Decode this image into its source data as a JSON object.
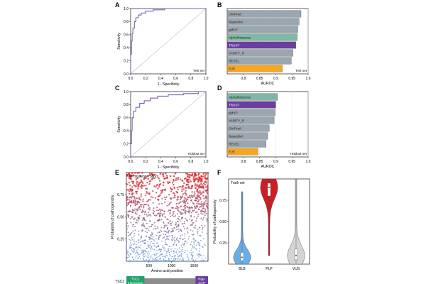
{
  "panel_letters": [
    "A",
    "B",
    "C",
    "D",
    "E",
    "F"
  ],
  "colors": {
    "roc_line": "#7b5ea7",
    "bar_grey": "#9aa6b0",
    "bar_alphamissense": "#7fb8a6",
    "bar_trust": "#6b3fa0",
    "bar_eve": "#f5a623",
    "blb": "#6aaee6",
    "plp": "#cc1f24",
    "vus": "#d4d4d4",
    "tsc1_domain": "#22a06b",
    "rapgap_domain": "#6b3fa0",
    "protein_backbone": "#8c8c8c"
  },
  "chart_data": [
    {
      "panel": "A",
      "type": "line",
      "xlabel": "1 - Specificity",
      "ylabel": "Sensitivity",
      "annotation": "Test set",
      "xlim": [
        0,
        1
      ],
      "ylim": [
        0,
        1
      ],
      "xticks": [
        "0.0",
        "0.2",
        "0.4",
        "0.6",
        "0.8",
        "1.0"
      ],
      "yticks": [
        "0.0",
        "0.2",
        "0.4",
        "0.6",
        "0.8",
        "1.0"
      ],
      "x": [
        0,
        0,
        0.01,
        0.01,
        0.02,
        0.02,
        0.03,
        0.03,
        0.05,
        0.05,
        0.07,
        0.07,
        0.1,
        0.1,
        0.14,
        0.14,
        0.2,
        0.2,
        0.3,
        0.3,
        0.45,
        0.45,
        0.6,
        0.85,
        1
      ],
      "y": [
        0,
        0.3,
        0.3,
        0.5,
        0.5,
        0.62,
        0.62,
        0.7,
        0.7,
        0.8,
        0.8,
        0.86,
        0.86,
        0.9,
        0.9,
        0.93,
        0.93,
        0.96,
        0.96,
        0.98,
        0.98,
        1,
        1,
        1,
        1
      ]
    },
    {
      "panel": "B",
      "type": "bar",
      "orientation": "horizontal",
      "xlabel": "AUROC",
      "annotation": "Test set",
      "xlim": [
        0.75,
        1.0
      ],
      "xticks": [
        "0.8",
        "0.85",
        "0.9",
        "0.95",
        "1.0"
      ],
      "categories": [
        "ClinPred",
        "BayesDel",
        "gMVP",
        "AlphaMissense",
        "TRUST",
        "VARITY_R",
        "REVEL",
        "EVE"
      ],
      "values": [
        0.978,
        0.972,
        0.968,
        0.966,
        0.962,
        0.953,
        0.948,
        0.92
      ]
    },
    {
      "panel": "C",
      "type": "line",
      "xlabel": "1 - Specificity",
      "ylabel": "Sensitivity",
      "annotation": "Holdout set",
      "xlim": [
        0,
        1
      ],
      "ylim": [
        0,
        1
      ],
      "xticks": [
        "0.0",
        "0.2",
        "0.4",
        "0.6",
        "0.8",
        "1.0"
      ],
      "yticks": [
        "0.0",
        "0.2",
        "0.4",
        "0.6",
        "0.8",
        "1.0"
      ],
      "x": [
        0,
        0,
        0.01,
        0.01,
        0.02,
        0.02,
        0.04,
        0.04,
        0.07,
        0.07,
        0.12,
        0.12,
        0.18,
        0.18,
        0.26,
        0.26,
        0.36,
        0.36,
        0.5,
        0.5,
        0.7,
        0.7,
        0.9,
        0.9,
        1
      ],
      "y": [
        0,
        0.2,
        0.2,
        0.4,
        0.4,
        0.6,
        0.6,
        0.7,
        0.7,
        0.76,
        0.76,
        0.82,
        0.82,
        0.86,
        0.86,
        0.9,
        0.9,
        0.93,
        0.93,
        0.95,
        0.95,
        0.97,
        0.97,
        1,
        1
      ]
    },
    {
      "panel": "D",
      "type": "bar",
      "orientation": "horizontal",
      "xlabel": "AUROC",
      "annotation": "Holdout set",
      "xlim": [
        0.75,
        1.0
      ],
      "xticks": [
        "0.8",
        "0.85",
        "0.9",
        "0.95",
        "1.0"
      ],
      "categories": [
        "AlphaMissense",
        "TRUST",
        "gMVP",
        "VARITY_R",
        "ClinPred",
        "BayesDel",
        "REVEL",
        "EVE"
      ],
      "values": [
        0.905,
        0.9,
        0.898,
        0.895,
        0.88,
        0.875,
        0.87,
        0.845
      ]
    },
    {
      "panel": "E",
      "type": "scatter",
      "title": "All missense SNVs",
      "xlabel": "Amino acid position",
      "ylabel": "Probability of pathogenicity",
      "xlim": [
        0,
        1807
      ],
      "ylim": [
        0,
        1
      ],
      "xticks": [
        "500",
        "1000",
        "1500"
      ],
      "yticks": [
        "0.25",
        "0.50",
        "0.75"
      ],
      "protein": {
        "name": "TSC2",
        "length": 1807,
        "domains": [
          {
            "label": "TSC1 Interaction",
            "start": 1,
            "end": 400
          },
          {
            "label": "Rap-GAP",
            "start": 1530,
            "end": 1807
          }
        ]
      }
    },
    {
      "panel": "F",
      "type": "violin",
      "title": "Truth set",
      "ylabel": "Probability of pathogenicity",
      "ylim": [
        0,
        1
      ],
      "yticks": [
        "0.25",
        "0.50",
        "0.75"
      ],
      "categories": [
        "BLB",
        "PLP",
        "VUS"
      ],
      "medians": [
        0.08,
        0.9,
        0.1
      ],
      "q1": [
        0.04,
        0.8,
        0.05
      ],
      "q3": [
        0.14,
        0.95,
        0.18
      ],
      "min": [
        0.0,
        0.1,
        0.0
      ],
      "max": [
        0.85,
        1.0,
        1.0
      ]
    }
  ]
}
